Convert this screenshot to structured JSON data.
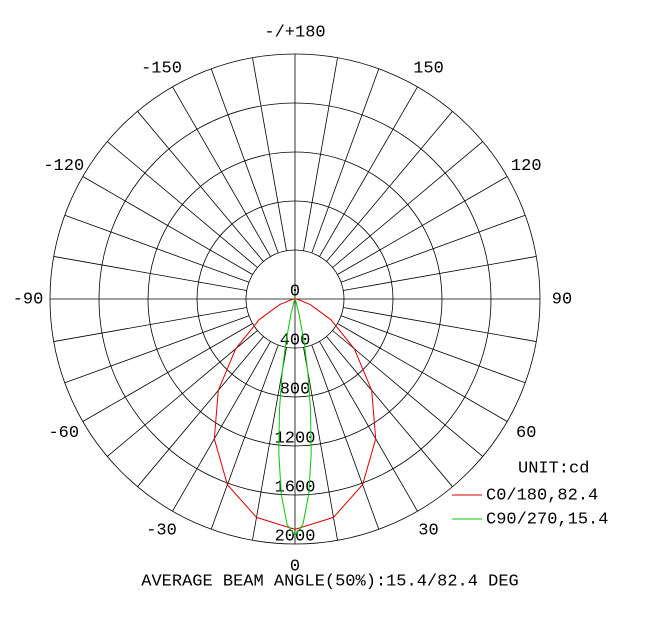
{
  "chart_data": {
    "type": "polar",
    "unit": "UNIT:cd",
    "note": "AVERAGE BEAM ANGLE(50%):15.4/82.4 DEG",
    "rlim": [
      0,
      2000
    ],
    "rticks": [
      0,
      400,
      800,
      1200,
      1600,
      2000
    ],
    "angle_ticks": [
      {
        "value": 180,
        "label": "-/+180"
      },
      150,
      120,
      90,
      60,
      30,
      0,
      -30,
      -60,
      -90,
      -120,
      -150
    ],
    "series": [
      {
        "name": "C0/180,82.4",
        "color": "#e00000",
        "x": [
          -90,
          -80,
          -70,
          -60,
          -50,
          -40,
          -30,
          -20,
          -10,
          0,
          10,
          20,
          30,
          40,
          50,
          60,
          70,
          80,
          90
        ],
        "values": [
          0,
          25,
          133,
          339,
          632,
          974,
          1318,
          1613,
          1810,
          1880,
          1810,
          1613,
          1318,
          974,
          632,
          339,
          133,
          25,
          0
        ]
      },
      {
        "name": "C90/270,15.4",
        "color": "#00cc00",
        "x": [
          -90,
          -20,
          -15,
          -12,
          -10,
          -8,
          -6,
          -4,
          -2,
          0,
          2,
          4,
          6,
          8,
          10,
          12,
          15,
          20,
          90
        ],
        "values": [
          0,
          16,
          134,
          355,
          596,
          910,
          1265,
          1600,
          1842,
          1930,
          1842,
          1600,
          1265,
          910,
          596,
          355,
          134,
          16,
          0
        ]
      }
    ]
  }
}
